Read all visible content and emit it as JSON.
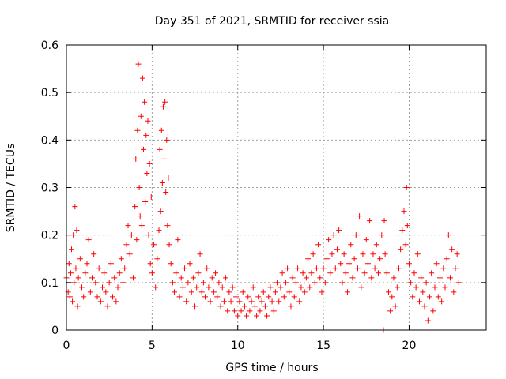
{
  "chart_data": {
    "type": "scatter",
    "title": "Day 351 of 2021, SRMTID for receiver ssia",
    "xlabel": "GPS time / hours",
    "ylabel": "SRMTID / TECUs",
    "xlim": [
      0,
      24.5
    ],
    "ylim": [
      0,
      0.6
    ],
    "xticks": [
      0,
      5,
      10,
      15,
      20
    ],
    "xtick_labels": [
      "0",
      "5",
      "10",
      "15",
      "20"
    ],
    "yticks": [
      0,
      0.1,
      0.2,
      0.3,
      0.4,
      0.5,
      0.6
    ],
    "ytick_labels": [
      "0",
      "0.1",
      "0.2",
      "0.3",
      "0.4",
      "0.5",
      "0.6"
    ],
    "grid": true,
    "marker": "+",
    "color": "#ff0000",
    "series": [
      {
        "name": "SRMTID",
        "points": [
          [
            0.0,
            0.11
          ],
          [
            0.1,
            0.08
          ],
          [
            0.15,
            0.14
          ],
          [
            0.2,
            0.07
          ],
          [
            0.25,
            0.12
          ],
          [
            0.3,
            0.17
          ],
          [
            0.35,
            0.06
          ],
          [
            0.4,
            0.2
          ],
          [
            0.45,
            0.1
          ],
          [
            0.5,
            0.26
          ],
          [
            0.55,
            0.13
          ],
          [
            0.6,
            0.21
          ],
          [
            0.65,
            0.05
          ],
          [
            0.7,
            0.11
          ],
          [
            0.8,
            0.15
          ],
          [
            0.9,
            0.09
          ],
          [
            1.0,
            0.07
          ],
          [
            1.1,
            0.12
          ],
          [
            1.2,
            0.14
          ],
          [
            1.3,
            0.19
          ],
          [
            1.4,
            0.08
          ],
          [
            1.5,
            0.11
          ],
          [
            1.6,
            0.16
          ],
          [
            1.7,
            0.1
          ],
          [
            1.8,
            0.07
          ],
          [
            1.9,
            0.13
          ],
          [
            2.0,
            0.06
          ],
          [
            2.1,
            0.09
          ],
          [
            2.2,
            0.12
          ],
          [
            2.3,
            0.08
          ],
          [
            2.4,
            0.05
          ],
          [
            2.5,
            0.1
          ],
          [
            2.6,
            0.14
          ],
          [
            2.7,
            0.07
          ],
          [
            2.8,
            0.11
          ],
          [
            2.9,
            0.06
          ],
          [
            3.0,
            0.09
          ],
          [
            3.1,
            0.12
          ],
          [
            3.2,
            0.15
          ],
          [
            3.3,
            0.1
          ],
          [
            3.4,
            0.13
          ],
          [
            3.5,
            0.18
          ],
          [
            3.6,
            0.22
          ],
          [
            3.7,
            0.16
          ],
          [
            3.8,
            0.2
          ],
          [
            3.9,
            0.11
          ],
          [
            4.0,
            0.26
          ],
          [
            4.05,
            0.36
          ],
          [
            4.1,
            0.19
          ],
          [
            4.15,
            0.42
          ],
          [
            4.2,
            0.56
          ],
          [
            4.25,
            0.3
          ],
          [
            4.3,
            0.24
          ],
          [
            4.35,
            0.45
          ],
          [
            4.4,
            0.22
          ],
          [
            4.45,
            0.53
          ],
          [
            4.5,
            0.38
          ],
          [
            4.55,
            0.48
          ],
          [
            4.6,
            0.27
          ],
          [
            4.65,
            0.41
          ],
          [
            4.7,
            0.33
          ],
          [
            4.75,
            0.44
          ],
          [
            4.8,
            0.2
          ],
          [
            4.85,
            0.35
          ],
          [
            4.9,
            0.14
          ],
          [
            4.95,
            0.28
          ],
          [
            5.0,
            0.12
          ],
          [
            5.1,
            0.18
          ],
          [
            5.2,
            0.09
          ],
          [
            5.3,
            0.15
          ],
          [
            5.4,
            0.21
          ],
          [
            5.45,
            0.38
          ],
          [
            5.5,
            0.25
          ],
          [
            5.55,
            0.42
          ],
          [
            5.6,
            0.31
          ],
          [
            5.65,
            0.47
          ],
          [
            5.7,
            0.36
          ],
          [
            5.75,
            0.48
          ],
          [
            5.8,
            0.29
          ],
          [
            5.85,
            0.4
          ],
          [
            5.9,
            0.22
          ],
          [
            5.95,
            0.32
          ],
          [
            6.0,
            0.18
          ],
          [
            6.1,
            0.14
          ],
          [
            6.2,
            0.1
          ],
          [
            6.3,
            0.08
          ],
          [
            6.4,
            0.12
          ],
          [
            6.5,
            0.19
          ],
          [
            6.6,
            0.07
          ],
          [
            6.7,
            0.11
          ],
          [
            6.8,
            0.09
          ],
          [
            6.9,
            0.13
          ],
          [
            7.0,
            0.06
          ],
          [
            7.1,
            0.1
          ],
          [
            7.2,
            0.14
          ],
          [
            7.3,
            0.08
          ],
          [
            7.4,
            0.11
          ],
          [
            7.5,
            0.05
          ],
          [
            7.6,
            0.09
          ],
          [
            7.7,
            0.12
          ],
          [
            7.8,
            0.16
          ],
          [
            7.9,
            0.08
          ],
          [
            8.0,
            0.1
          ],
          [
            8.1,
            0.07
          ],
          [
            8.2,
            0.13
          ],
          [
            8.3,
            0.09
          ],
          [
            8.4,
            0.06
          ],
          [
            8.5,
            0.11
          ],
          [
            8.6,
            0.08
          ],
          [
            8.7,
            0.12
          ],
          [
            8.8,
            0.07
          ],
          [
            8.9,
            0.1
          ],
          [
            9.0,
            0.05
          ],
          [
            9.1,
            0.09
          ],
          [
            9.2,
            0.06
          ],
          [
            9.3,
            0.11
          ],
          [
            9.4,
            0.04
          ],
          [
            9.5,
            0.08
          ],
          [
            9.6,
            0.06
          ],
          [
            9.7,
            0.09
          ],
          [
            9.8,
            0.04
          ],
          [
            9.9,
            0.07
          ],
          [
            10.0,
            0.03
          ],
          [
            10.1,
            0.06
          ],
          [
            10.2,
            0.04
          ],
          [
            10.3,
            0.08
          ],
          [
            10.4,
            0.05
          ],
          [
            10.5,
            0.03
          ],
          [
            10.6,
            0.07
          ],
          [
            10.7,
            0.04
          ],
          [
            10.8,
            0.06
          ],
          [
            10.9,
            0.09
          ],
          [
            11.0,
            0.05
          ],
          [
            11.1,
            0.03
          ],
          [
            11.2,
            0.07
          ],
          [
            11.3,
            0.04
          ],
          [
            11.4,
            0.06
          ],
          [
            11.5,
            0.08
          ],
          [
            11.6,
            0.05
          ],
          [
            11.7,
            0.03
          ],
          [
            11.8,
            0.07
          ],
          [
            11.9,
            0.09
          ],
          [
            12.0,
            0.06
          ],
          [
            12.1,
            0.04
          ],
          [
            12.2,
            0.08
          ],
          [
            12.3,
            0.1
          ],
          [
            12.4,
            0.06
          ],
          [
            12.5,
            0.09
          ],
          [
            12.6,
            0.12
          ],
          [
            12.7,
            0.07
          ],
          [
            12.8,
            0.1
          ],
          [
            12.9,
            0.13
          ],
          [
            13.0,
            0.08
          ],
          [
            13.1,
            0.05
          ],
          [
            13.2,
            0.11
          ],
          [
            13.3,
            0.07
          ],
          [
            13.4,
            0.1
          ],
          [
            13.5,
            0.13
          ],
          [
            13.6,
            0.06
          ],
          [
            13.7,
            0.09
          ],
          [
            13.8,
            0.12
          ],
          [
            13.9,
            0.08
          ],
          [
            14.0,
            0.11
          ],
          [
            14.1,
            0.15
          ],
          [
            14.2,
            0.09
          ],
          [
            14.3,
            0.12
          ],
          [
            14.4,
            0.16
          ],
          [
            14.5,
            0.1
          ],
          [
            14.6,
            0.13
          ],
          [
            14.7,
            0.18
          ],
          [
            14.8,
            0.11
          ],
          [
            14.9,
            0.08
          ],
          [
            15.0,
            0.13
          ],
          [
            15.1,
            0.1
          ],
          [
            15.2,
            0.15
          ],
          [
            15.3,
            0.19
          ],
          [
            15.4,
            0.12
          ],
          [
            15.5,
            0.16
          ],
          [
            15.6,
            0.2
          ],
          [
            15.7,
            0.13
          ],
          [
            15.8,
            0.17
          ],
          [
            15.9,
            0.21
          ],
          [
            16.0,
            0.14
          ],
          [
            16.1,
            0.1
          ],
          [
            16.2,
            0.16
          ],
          [
            16.3,
            0.12
          ],
          [
            16.4,
            0.08
          ],
          [
            16.5,
            0.14
          ],
          [
            16.6,
            0.18
          ],
          [
            16.7,
            0.11
          ],
          [
            16.8,
            0.15
          ],
          [
            16.9,
            0.2
          ],
          [
            17.0,
            0.13
          ],
          [
            17.1,
            0.24
          ],
          [
            17.2,
            0.09
          ],
          [
            17.3,
            0.16
          ],
          [
            17.4,
            0.12
          ],
          [
            17.5,
            0.19
          ],
          [
            17.6,
            0.14
          ],
          [
            17.7,
            0.23
          ],
          [
            17.8,
            0.11
          ],
          [
            17.9,
            0.16
          ],
          [
            18.0,
            0.13
          ],
          [
            18.1,
            0.18
          ],
          [
            18.2,
            0.12
          ],
          [
            18.3,
            0.15
          ],
          [
            18.4,
            0.2
          ],
          [
            18.5,
            0.0
          ],
          [
            18.55,
            0.23
          ],
          [
            18.6,
            0.16
          ],
          [
            18.7,
            0.12
          ],
          [
            18.8,
            0.08
          ],
          [
            18.9,
            0.04
          ],
          [
            19.0,
            0.07
          ],
          [
            19.1,
            0.11
          ],
          [
            19.2,
            0.05
          ],
          [
            19.3,
            0.09
          ],
          [
            19.4,
            0.13
          ],
          [
            19.5,
            0.17
          ],
          [
            19.6,
            0.21
          ],
          [
            19.7,
            0.25
          ],
          [
            19.8,
            0.18
          ],
          [
            19.85,
            0.3
          ],
          [
            19.9,
            0.22
          ],
          [
            20.0,
            0.14
          ],
          [
            20.1,
            0.1
          ],
          [
            20.2,
            0.07
          ],
          [
            20.3,
            0.12
          ],
          [
            20.4,
            0.09
          ],
          [
            20.5,
            0.16
          ],
          [
            20.6,
            0.06
          ],
          [
            20.7,
            0.11
          ],
          [
            20.8,
            0.08
          ],
          [
            20.9,
            0.05
          ],
          [
            21.0,
            0.1
          ],
          [
            21.1,
            0.02
          ],
          [
            21.2,
            0.07
          ],
          [
            21.3,
            0.12
          ],
          [
            21.4,
            0.04
          ],
          [
            21.5,
            0.09
          ],
          [
            21.6,
            0.14
          ],
          [
            21.7,
            0.07
          ],
          [
            21.8,
            0.11
          ],
          [
            21.9,
            0.06
          ],
          [
            22.0,
            0.13
          ],
          [
            22.1,
            0.09
          ],
          [
            22.2,
            0.15
          ],
          [
            22.3,
            0.2
          ],
          [
            22.4,
            0.11
          ],
          [
            22.5,
            0.17
          ],
          [
            22.6,
            0.08
          ],
          [
            22.7,
            0.13
          ],
          [
            22.8,
            0.16
          ],
          [
            22.9,
            0.1
          ]
        ]
      }
    ]
  }
}
